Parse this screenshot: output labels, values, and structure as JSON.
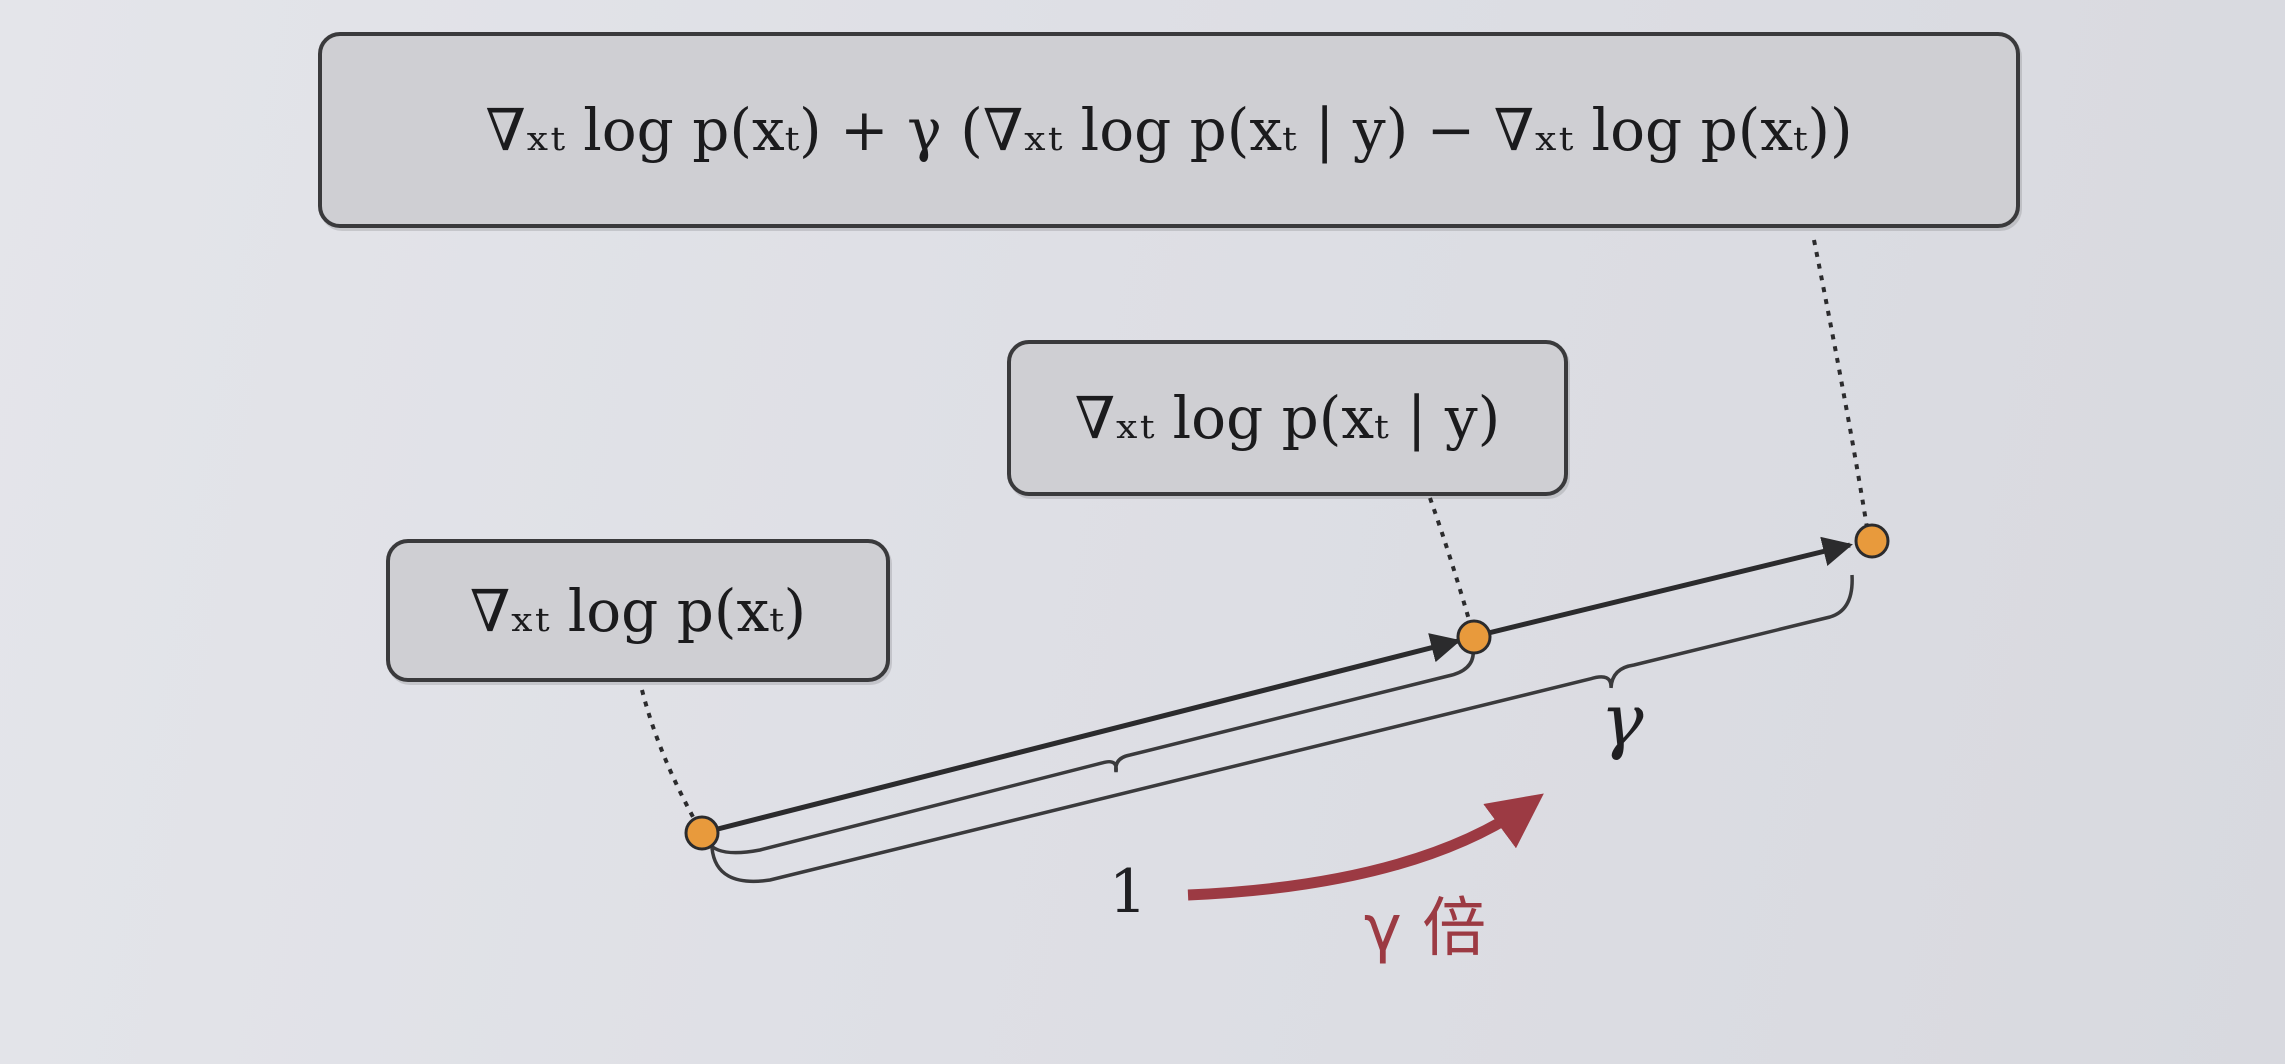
{
  "diagram": {
    "labels": {
      "guided_score": "∇ₓₜ log p(xₜ) + γ (∇ₓₜ log p(xₜ | y) − ∇ₓₜ log p(xₜ))",
      "conditional_score": "∇ₓₜ log p(xₜ | y)",
      "unconditional_score": "∇ₓₜ log p(xₜ)"
    },
    "brace_labels": {
      "unit_length": "1",
      "scaled_length": "γ"
    },
    "scale_annotation": "γ 倍",
    "colors": {
      "point_fill": "#e89a3c",
      "accent": "#9c3a43",
      "line": "#2b2b2d"
    }
  }
}
